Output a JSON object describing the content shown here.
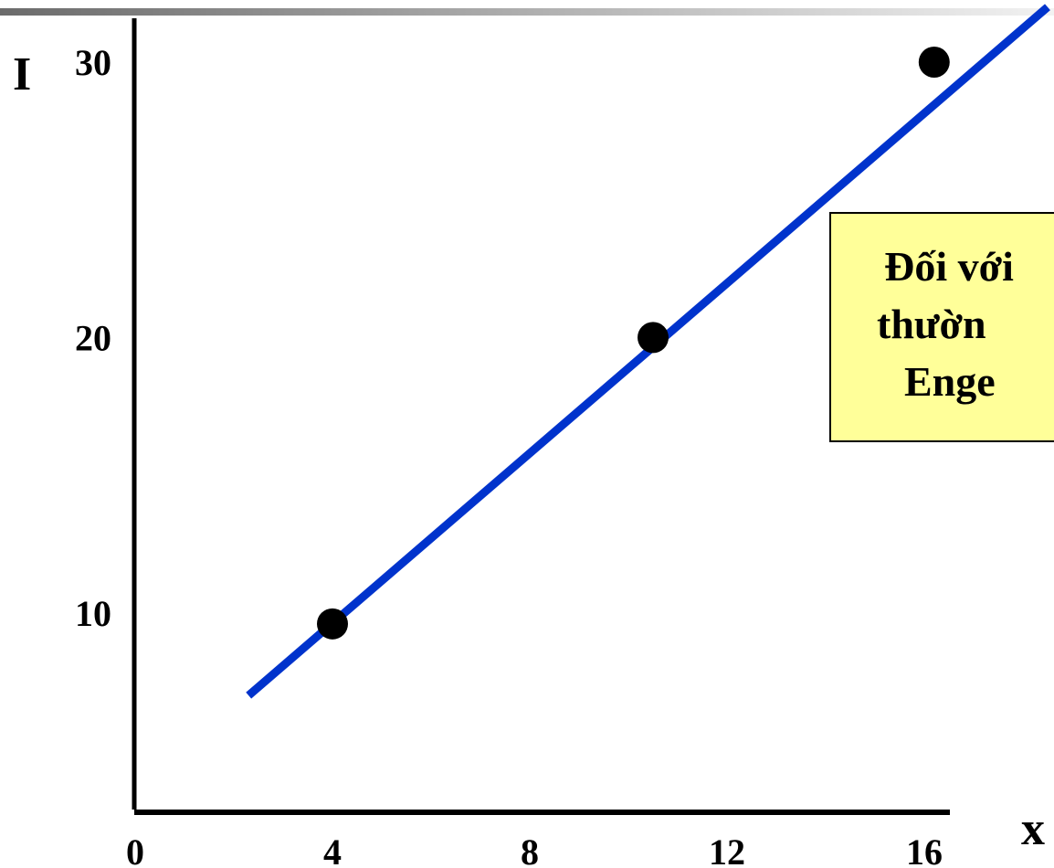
{
  "chart_data": {
    "type": "line",
    "xlabel": "x",
    "ylabel": "I",
    "xlim": [
      0,
      16
    ],
    "ylim": [
      1,
      30
    ],
    "x_ticks": [
      0,
      4,
      8,
      12,
      16
    ],
    "y_ticks": [
      10,
      20,
      30
    ],
    "series": [
      {
        "color": "#0033cc",
        "line": {
          "x": [
            2.3,
            18.5
          ],
          "y": [
            7,
            32
          ]
        },
        "points": [
          {
            "x": 4,
            "y": 9.6
          },
          {
            "x": 10.5,
            "y": 20
          },
          {
            "x": 16.2,
            "y": 30
          }
        ]
      }
    ],
    "annotation": {
      "lines": [
        "Đối với",
        "thườn",
        "Enge"
      ],
      "background": "#ffff99"
    },
    "grid": false
  }
}
